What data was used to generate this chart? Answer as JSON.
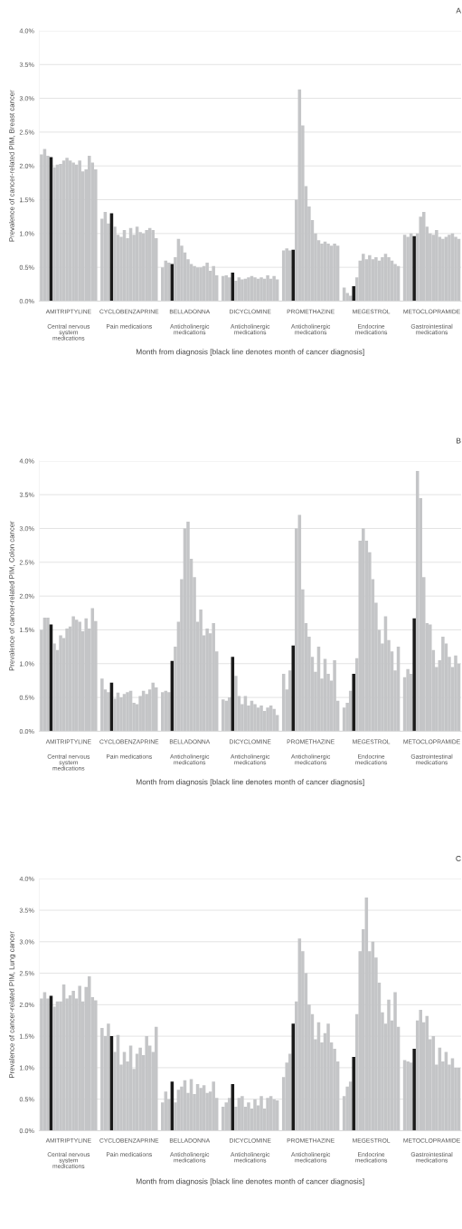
{
  "chart_data": [
    {
      "type": "bar",
      "title": "A",
      "ylabel": "Prevalence of cancer-related PIM, Breast cancer",
      "xlabel": "Month from diagnosis [black line denotes month of cancer diagnosis]",
      "categories": [
        null,
        null,
        null,
        null,
        null,
        null,
        null,
        null,
        null,
        null,
        null,
        null,
        null,
        null,
        null,
        null,
        null,
        null,
        null,
        null,
        null,
        null,
        null,
        null,
        null,
        null,
        null,
        null,
        null,
        null,
        null,
        null,
        null,
        null,
        null,
        null,
        null,
        null,
        null,
        null,
        null,
        null,
        null,
        null,
        null,
        null,
        null,
        null,
        null,
        null,
        null,
        null,
        null,
        null,
        null,
        null,
        null,
        null,
        null,
        null,
        null,
        null,
        null,
        null,
        null,
        null,
        null,
        null,
        null,
        null,
        null,
        null,
        null,
        null,
        null,
        null,
        null,
        null,
        null,
        null,
        null,
        null,
        null,
        null,
        null,
        null,
        null,
        null,
        null,
        null,
        null,
        null,
        null,
        null,
        null,
        null,
        null,
        null,
        null,
        null,
        null,
        null,
        null,
        null,
        null,
        null,
        null,
        null,
        null,
        null,
        null,
        null,
        null,
        null,
        null,
        null,
        null,
        null,
        null,
        null,
        null,
        null,
        null,
        null,
        null,
        null,
        null,
        null,
        null,
        null,
        null,
        null
      ],
      "values": [
        2.17,
        2.25,
        2.15,
        2.13,
        1.98,
        2.02,
        2.03,
        2.08,
        2.12,
        2.08,
        2.05,
        2.02,
        2.08,
        1.92,
        1.95,
        2.15,
        2.05,
        1.95,
        null,
        1.22,
        1.32,
        1.15,
        1.3,
        1.1,
        0.98,
        0.95,
        1.05,
        0.93,
        1.08,
        0.98,
        1.1,
        1.02,
        1.0,
        1.05,
        1.08,
        1.05,
        0.93,
        null,
        0.5,
        0.6,
        0.57,
        0.55,
        0.65,
        0.92,
        0.82,
        0.72,
        0.62,
        0.55,
        0.52,
        0.5,
        0.5,
        0.52,
        0.57,
        0.45,
        0.52,
        0.38,
        null,
        0.37,
        0.38,
        0.35,
        0.42,
        0.3,
        0.35,
        0.32,
        0.33,
        0.35,
        0.37,
        0.35,
        0.33,
        0.35,
        0.33,
        0.38,
        0.33,
        0.37,
        0.32,
        null,
        0.75,
        0.78,
        0.75,
        0.76,
        1.5,
        3.13,
        2.6,
        1.7,
        1.4,
        1.2,
        1.0,
        0.9,
        0.85,
        0.88,
        0.85,
        0.82,
        0.85,
        0.82,
        null,
        0.2,
        0.12,
        0.08,
        0.22,
        0.35,
        0.6,
        0.7,
        0.62,
        0.68,
        0.62,
        0.65,
        0.6,
        0.65,
        0.7,
        0.65,
        0.6,
        0.55,
        0.52,
        null,
        0.98,
        0.95,
        1.0,
        0.96,
        1.0,
        1.25,
        1.32,
        1.1,
        1.0,
        0.98,
        1.05,
        0.95,
        0.92,
        0.95,
        0.98,
        1.0,
        0.95,
        0.92
      ],
      "colors": [
        "#c4c5c7",
        "#c4c5c7",
        "#c4c5c7",
        "#1a1a1a",
        "#c4c5c7",
        "#c4c5c7",
        "#c4c5c7",
        "#c4c5c7",
        "#c4c5c7",
        "#c4c5c7",
        "#c4c5c7",
        "#c4c5c7",
        "#c4c5c7",
        "#c4c5c7",
        "#c4c5c7",
        "#c4c5c7",
        "#c4c5c7",
        "#c4c5c7",
        "#c4c5c7",
        "#c4c5c7",
        "#c4c5c7",
        "#c4c5c7",
        "#1a1a1a",
        "#c4c5c7",
        "#c4c5c7",
        "#c4c5c7",
        "#c4c5c7",
        "#c4c5c7",
        "#c4c5c7",
        "#c4c5c7",
        "#c4c5c7",
        "#c4c5c7",
        "#c4c5c7",
        "#c4c5c7",
        "#c4c5c7",
        "#c4c5c7",
        "#c4c5c7",
        "#c4c5c7",
        "#c4c5c7",
        "#c4c5c7",
        "#c4c5c7",
        "#1a1a1a",
        "#c4c5c7",
        "#c4c5c7",
        "#c4c5c7",
        "#c4c5c7",
        "#c4c5c7",
        "#c4c5c7",
        "#c4c5c7",
        "#c4c5c7",
        "#c4c5c7",
        "#c4c5c7",
        "#c4c5c7",
        "#c4c5c7",
        "#c4c5c7",
        "#c4c5c7",
        "#c4c5c7",
        "#c4c5c7",
        "#c4c5c7",
        "#c4c5c7",
        "#1a1a1a",
        "#c4c5c7",
        "#c4c5c7",
        "#c4c5c7",
        "#c4c5c7",
        "#c4c5c7",
        "#c4c5c7",
        "#c4c5c7",
        "#c4c5c7",
        "#c4c5c7",
        "#c4c5c7",
        "#c4c5c7",
        "#c4c5c7",
        "#c4c5c7",
        "#c4c5c7",
        "#c4c5c7",
        "#c4c5c7",
        "#c4c5c7",
        "#c4c5c7",
        "#1a1a1a",
        "#c4c5c7",
        "#c4c5c7",
        "#c4c5c7",
        "#c4c5c7",
        "#c4c5c7",
        "#c4c5c7",
        "#c4c5c7",
        "#c4c5c7",
        "#c4c5c7",
        "#c4c5c7",
        "#c4c5c7",
        "#c4c5c7",
        "#c4c5c7",
        "#c4c5c7",
        "#c4c5c7",
        "#c4c5c7",
        "#c4c5c7",
        "#c4c5c7",
        "#1a1a1a",
        "#c4c5c7",
        "#c4c5c7",
        "#c4c5c7",
        "#c4c5c7",
        "#c4c5c7",
        "#c4c5c7",
        "#c4c5c7",
        "#c4c5c7",
        "#c4c5c7",
        "#c4c5c7",
        "#c4c5c7",
        "#c4c5c7",
        "#c4c5c7",
        "#c4c5c7",
        "#c4c5c7",
        "#c4c5c7",
        "#c4c5c7",
        "#c4c5c7",
        "#1a1a1a",
        "#c4c5c7",
        "#c4c5c7",
        "#c4c5c7",
        "#c4c5c7",
        "#c4c5c7",
        "#c4c5c7",
        "#c4c5c7",
        "#c4c5c7",
        "#c4c5c7",
        "#c4c5c7",
        "#c4c5c7",
        "#c4c5c7",
        "#c4c5c7",
        "#c4c5c7"
      ],
      "ylim": [
        0,
        4.0
      ],
      "yticks": [
        {
          "value": 0,
          "label": "0.0%"
        },
        {
          "value": 0.5,
          "label": "0.5%"
        },
        {
          "value": 1.0,
          "label": "1.0%"
        },
        {
          "value": 1.5,
          "label": "1.5%"
        },
        {
          "value": 2.0,
          "label": "2.0%"
        },
        {
          "value": 2.5,
          "label": "2.5%"
        },
        {
          "value": 3.0,
          "label": "3.0%"
        },
        {
          "value": 3.5,
          "label": "3.5%"
        },
        {
          "value": 4.0,
          "label": "4.0%"
        }
      ],
      "grid": "y",
      "annotations": [
        "AMITRIPTYLINE",
        "Central nervous system medications",
        "CYCLOBENZAPRINE",
        "Pain medications",
        "BELLADONNA",
        "Anticholinergic medications",
        "DICYCLOMINE",
        "Anticholinergic medications",
        "PROMETHAZINE",
        "Anticholinergic medications",
        "MEGESTROL",
        "Endocrine medications",
        "METOCLOPRAMIDE",
        "Gastrointestinal medications"
      ]
    },
    {
      "type": "bar",
      "title": "B",
      "ylabel": "Prevalence of cancer-related PIM, Colon cancer",
      "xlabel": "Month from diagnosis [black line denotes month of cancer diagnosis]",
      "categories": [
        null,
        null,
        null,
        null,
        null,
        null,
        null,
        null,
        null,
        null,
        null,
        null,
        null,
        null,
        null,
        null,
        null,
        null,
        null,
        null,
        null,
        null,
        null,
        null,
        null,
        null,
        null,
        null,
        null,
        null,
        null,
        null,
        null,
        null,
        null,
        null,
        null,
        null,
        null,
        null,
        null,
        null,
        null,
        null,
        null,
        null,
        null,
        null,
        null,
        null,
        null,
        null,
        null,
        null,
        null,
        null,
        null,
        null,
        null,
        null,
        null,
        null,
        null,
        null,
        null,
        null,
        null,
        null,
        null,
        null,
        null,
        null,
        null,
        null,
        null,
        null,
        null,
        null,
        null,
        null,
        null,
        null,
        null,
        null,
        null,
        null,
        null,
        null,
        null,
        null,
        null,
        null,
        null,
        null,
        null,
        null,
        null,
        null,
        null,
        null,
        null,
        null,
        null,
        null,
        null,
        null,
        null,
        null,
        null,
        null,
        null,
        null,
        null,
        null,
        null,
        null,
        null,
        null,
        null,
        null,
        null,
        null,
        null,
        null,
        null,
        null,
        null,
        null,
        null,
        null,
        null,
        null
      ],
      "values": [
        1.5,
        1.68,
        1.68,
        1.58,
        1.3,
        1.2,
        1.42,
        1.38,
        1.52,
        1.55,
        1.7,
        1.65,
        1.62,
        1.48,
        1.67,
        1.52,
        1.82,
        1.63,
        null,
        0.78,
        0.62,
        0.58,
        0.72,
        0.48,
        0.57,
        0.5,
        0.55,
        0.58,
        0.6,
        0.42,
        0.4,
        0.52,
        0.6,
        0.55,
        0.62,
        0.72,
        0.65,
        null,
        0.58,
        0.6,
        0.58,
        1.04,
        1.25,
        1.62,
        2.25,
        3.0,
        3.1,
        2.55,
        2.28,
        1.62,
        1.8,
        1.42,
        1.52,
        1.45,
        1.6,
        1.18,
        null,
        0.47,
        0.45,
        0.5,
        1.1,
        0.82,
        0.52,
        0.4,
        0.52,
        0.38,
        0.45,
        0.4,
        0.35,
        0.38,
        0.3,
        0.35,
        0.38,
        0.33,
        0.24,
        null,
        0.85,
        0.62,
        0.9,
        1.27,
        3.0,
        3.2,
        2.1,
        1.6,
        1.4,
        1.1,
        0.88,
        1.25,
        0.78,
        1.07,
        0.85,
        0.75,
        1.05,
        0.45,
        null,
        0.35,
        0.42,
        0.6,
        0.85,
        1.08,
        2.82,
        3.0,
        2.82,
        2.65,
        2.25,
        1.9,
        1.5,
        1.3,
        1.7,
        1.35,
        1.18,
        0.9,
        1.25,
        null,
        0.8,
        0.92,
        0.85,
        1.67,
        3.85,
        3.45,
        2.28,
        1.6,
        1.58,
        1.2,
        0.95,
        1.05,
        1.4,
        1.3,
        1.1,
        0.95,
        1.12,
        1.0
      ],
      "colors": [
        "#c4c5c7",
        "#c4c5c7",
        "#c4c5c7",
        "#1a1a1a",
        "#c4c5c7",
        "#c4c5c7",
        "#c4c5c7",
        "#c4c5c7",
        "#c4c5c7",
        "#c4c5c7",
        "#c4c5c7",
        "#c4c5c7",
        "#c4c5c7",
        "#c4c5c7",
        "#c4c5c7",
        "#c4c5c7",
        "#c4c5c7",
        "#c4c5c7",
        "#c4c5c7",
        "#c4c5c7",
        "#c4c5c7",
        "#c4c5c7",
        "#1a1a1a",
        "#c4c5c7",
        "#c4c5c7",
        "#c4c5c7",
        "#c4c5c7",
        "#c4c5c7",
        "#c4c5c7",
        "#c4c5c7",
        "#c4c5c7",
        "#c4c5c7",
        "#c4c5c7",
        "#c4c5c7",
        "#c4c5c7",
        "#c4c5c7",
        "#c4c5c7",
        "#c4c5c7",
        "#c4c5c7",
        "#c4c5c7",
        "#c4c5c7",
        "#1a1a1a",
        "#c4c5c7",
        "#c4c5c7",
        "#c4c5c7",
        "#c4c5c7",
        "#c4c5c7",
        "#c4c5c7",
        "#c4c5c7",
        "#c4c5c7",
        "#c4c5c7",
        "#c4c5c7",
        "#c4c5c7",
        "#c4c5c7",
        "#c4c5c7",
        "#c4c5c7",
        "#c4c5c7",
        "#c4c5c7",
        "#c4c5c7",
        "#c4c5c7",
        "#1a1a1a",
        "#c4c5c7",
        "#c4c5c7",
        "#c4c5c7",
        "#c4c5c7",
        "#c4c5c7",
        "#c4c5c7",
        "#c4c5c7",
        "#c4c5c7",
        "#c4c5c7",
        "#c4c5c7",
        "#c4c5c7",
        "#c4c5c7",
        "#c4c5c7",
        "#c4c5c7",
        "#c4c5c7",
        "#c4c5c7",
        "#c4c5c7",
        "#c4c5c7",
        "#1a1a1a",
        "#c4c5c7",
        "#c4c5c7",
        "#c4c5c7",
        "#c4c5c7",
        "#c4c5c7",
        "#c4c5c7",
        "#c4c5c7",
        "#c4c5c7",
        "#c4c5c7",
        "#c4c5c7",
        "#c4c5c7",
        "#c4c5c7",
        "#c4c5c7",
        "#c4c5c7",
        "#c4c5c7",
        "#c4c5c7",
        "#c4c5c7",
        "#c4c5c7",
        "#1a1a1a",
        "#c4c5c7",
        "#c4c5c7",
        "#c4c5c7",
        "#c4c5c7",
        "#c4c5c7",
        "#c4c5c7",
        "#c4c5c7",
        "#c4c5c7",
        "#c4c5c7",
        "#c4c5c7",
        "#c4c5c7",
        "#c4c5c7",
        "#c4c5c7",
        "#c4c5c7",
        "#c4c5c7",
        "#c4c5c7",
        "#c4c5c7",
        "#c4c5c7",
        "#1a1a1a",
        "#c4c5c7",
        "#c4c5c7",
        "#c4c5c7",
        "#c4c5c7",
        "#c4c5c7",
        "#c4c5c7",
        "#c4c5c7",
        "#c4c5c7",
        "#c4c5c7",
        "#c4c5c7",
        "#c4c5c7",
        "#c4c5c7",
        "#c4c5c7",
        "#c4c5c7"
      ],
      "ylim": [
        0,
        4.0
      ],
      "yticks": [
        {
          "value": 0,
          "label": "0.0%"
        },
        {
          "value": 0.5,
          "label": "0.5%"
        },
        {
          "value": 1.0,
          "label": "1.0%"
        },
        {
          "value": 1.5,
          "label": "1.5%"
        },
        {
          "value": 2.0,
          "label": "2.0%"
        },
        {
          "value": 2.5,
          "label": "2.5%"
        },
        {
          "value": 3.0,
          "label": "3.0%"
        },
        {
          "value": 3.5,
          "label": "3.5%"
        },
        {
          "value": 4.0,
          "label": "4.0%"
        }
      ],
      "grid": "y",
      "annotations": [
        "AMITRIPTYLINE",
        "Central nervous system medications",
        "CYCLOBENZAPRINE",
        "Pain medications",
        "BELLADONNA",
        "Anticholinergic medications",
        "DICYCLOMINE",
        "Anticholinergic medications",
        "PROMETHAZINE",
        "Anticholinergic medications",
        "MEGESTROL",
        "Endocrine medications",
        "METOCLOPRAMIDE",
        "Gastrointestinal medications"
      ]
    },
    {
      "type": "bar",
      "title": "C",
      "ylabel": "Prevalence of cancer-related PIM, Lung cancer",
      "xlabel": "Month from diagnosis [black line denotes month of cancer diagnosis]",
      "categories": [
        null,
        null,
        null,
        null,
        null,
        null,
        null,
        null,
        null,
        null,
        null,
        null,
        null,
        null,
        null,
        null,
        null,
        null,
        null,
        null,
        null,
        null,
        null,
        null,
        null,
        null,
        null,
        null,
        null,
        null,
        null,
        null,
        null,
        null,
        null,
        null,
        null,
        null,
        null,
        null,
        null,
        null,
        null,
        null,
        null,
        null,
        null,
        null,
        null,
        null,
        null,
        null,
        null,
        null,
        null,
        null,
        null,
        null,
        null,
        null,
        null,
        null,
        null,
        null,
        null,
        null,
        null,
        null,
        null,
        null,
        null,
        null,
        null,
        null,
        null,
        null,
        null,
        null,
        null,
        null,
        null,
        null,
        null,
        null,
        null,
        null,
        null,
        null,
        null,
        null,
        null,
        null,
        null,
        null,
        null,
        null,
        null,
        null,
        null,
        null,
        null,
        null,
        null,
        null,
        null,
        null,
        null,
        null,
        null,
        null,
        null,
        null,
        null,
        null,
        null,
        null,
        null,
        null,
        null,
        null,
        null,
        null,
        null,
        null,
        null,
        null,
        null,
        null,
        null,
        null,
        null,
        null
      ],
      "values": [
        2.1,
        2.2,
        2.1,
        2.14,
        1.97,
        2.05,
        2.05,
        2.32,
        2.1,
        2.15,
        2.22,
        2.1,
        2.3,
        2.05,
        2.28,
        2.45,
        2.12,
        2.07,
        null,
        1.63,
        1.5,
        1.7,
        1.5,
        1.25,
        1.52,
        1.05,
        1.25,
        1.1,
        1.35,
        0.98,
        1.22,
        1.32,
        1.2,
        1.5,
        1.35,
        1.25,
        1.65,
        null,
        0.45,
        0.62,
        0.5,
        0.78,
        0.45,
        0.65,
        0.7,
        0.8,
        0.6,
        0.82,
        0.58,
        0.74,
        0.68,
        0.72,
        0.6,
        0.62,
        0.78,
        0.52,
        null,
        0.38,
        0.45,
        0.52,
        0.74,
        0.38,
        0.52,
        0.55,
        0.38,
        0.45,
        0.35,
        0.5,
        0.4,
        0.55,
        0.35,
        0.52,
        0.55,
        0.5,
        0.48,
        null,
        0.85,
        1.08,
        1.22,
        1.7,
        2.05,
        3.05,
        2.85,
        2.5,
        2.0,
        1.85,
        1.45,
        1.72,
        1.4,
        1.55,
        1.7,
        1.4,
        1.3,
        1.1,
        null,
        0.55,
        0.7,
        0.78,
        1.17,
        1.85,
        2.85,
        3.2,
        3.7,
        2.85,
        3.0,
        2.75,
        2.35,
        1.88,
        1.7,
        2.08,
        1.75,
        2.2,
        1.65,
        null,
        1.12,
        1.1,
        1.08,
        1.3,
        1.75,
        1.92,
        1.72,
        1.82,
        1.45,
        1.5,
        1.05,
        1.32,
        1.1,
        1.25,
        1.05,
        1.15,
        1.0,
        1.0
      ],
      "colors": [
        "#c4c5c7",
        "#c4c5c7",
        "#c4c5c7",
        "#1a1a1a",
        "#c4c5c7",
        "#c4c5c7",
        "#c4c5c7",
        "#c4c5c7",
        "#c4c5c7",
        "#c4c5c7",
        "#c4c5c7",
        "#c4c5c7",
        "#c4c5c7",
        "#c4c5c7",
        "#c4c5c7",
        "#c4c5c7",
        "#c4c5c7",
        "#c4c5c7",
        "#c4c5c7",
        "#c4c5c7",
        "#c4c5c7",
        "#c4c5c7",
        "#1a1a1a",
        "#c4c5c7",
        "#c4c5c7",
        "#c4c5c7",
        "#c4c5c7",
        "#c4c5c7",
        "#c4c5c7",
        "#c4c5c7",
        "#c4c5c7",
        "#c4c5c7",
        "#c4c5c7",
        "#c4c5c7",
        "#c4c5c7",
        "#c4c5c7",
        "#c4c5c7",
        "#c4c5c7",
        "#c4c5c7",
        "#c4c5c7",
        "#c4c5c7",
        "#1a1a1a",
        "#c4c5c7",
        "#c4c5c7",
        "#c4c5c7",
        "#c4c5c7",
        "#c4c5c7",
        "#c4c5c7",
        "#c4c5c7",
        "#c4c5c7",
        "#c4c5c7",
        "#c4c5c7",
        "#c4c5c7",
        "#c4c5c7",
        "#c4c5c7",
        "#c4c5c7",
        "#c4c5c7",
        "#c4c5c7",
        "#c4c5c7",
        "#c4c5c7",
        "#1a1a1a",
        "#c4c5c7",
        "#c4c5c7",
        "#c4c5c7",
        "#c4c5c7",
        "#c4c5c7",
        "#c4c5c7",
        "#c4c5c7",
        "#c4c5c7",
        "#c4c5c7",
        "#c4c5c7",
        "#c4c5c7",
        "#c4c5c7",
        "#c4c5c7",
        "#c4c5c7",
        "#c4c5c7",
        "#c4c5c7",
        "#c4c5c7",
        "#c4c5c7",
        "#1a1a1a",
        "#c4c5c7",
        "#c4c5c7",
        "#c4c5c7",
        "#c4c5c7",
        "#c4c5c7",
        "#c4c5c7",
        "#c4c5c7",
        "#c4c5c7",
        "#c4c5c7",
        "#c4c5c7",
        "#c4c5c7",
        "#c4c5c7",
        "#c4c5c7",
        "#c4c5c7",
        "#c4c5c7",
        "#c4c5c7",
        "#c4c5c7",
        "#c4c5c7",
        "#1a1a1a",
        "#c4c5c7",
        "#c4c5c7",
        "#c4c5c7",
        "#c4c5c7",
        "#c4c5c7",
        "#c4c5c7",
        "#c4c5c7",
        "#c4c5c7",
        "#c4c5c7",
        "#c4c5c7",
        "#c4c5c7",
        "#c4c5c7",
        "#c4c5c7",
        "#c4c5c7",
        "#c4c5c7",
        "#c4c5c7",
        "#c4c5c7",
        "#c4c5c7",
        "#1a1a1a",
        "#c4c5c7",
        "#c4c5c7",
        "#c4c5c7",
        "#c4c5c7",
        "#c4c5c7",
        "#c4c5c7",
        "#c4c5c7",
        "#c4c5c7",
        "#c4c5c7",
        "#c4c5c7",
        "#c4c5c7",
        "#c4c5c7",
        "#c4c5c7",
        "#c4c5c7"
      ],
      "ylim": [
        0,
        4.0
      ],
      "yticks": [
        {
          "value": 0,
          "label": "0.0%"
        },
        {
          "value": 0.5,
          "label": "0.5%"
        },
        {
          "value": 1.0,
          "label": "1.0%"
        },
        {
          "value": 1.5,
          "label": "1.5%"
        },
        {
          "value": 2.0,
          "label": "2.0%"
        },
        {
          "value": 2.5,
          "label": "2.5%"
        },
        {
          "value": 3.0,
          "label": "3.0%"
        },
        {
          "value": 3.5,
          "label": "3.5%"
        },
        {
          "value": 4.0,
          "label": "4.0%"
        }
      ],
      "grid": "y",
      "annotations": [
        "AMITRIPTYLINE",
        "Central nervous system medications",
        "CYCLOBENZAPRINE",
        "Pain medications",
        "BELLADONNA",
        "Anticholinergic medications",
        "DICYCLOMINE",
        "Anticholinergic medications",
        "PROMETHAZINE",
        "Anticholinergic medications",
        "MEGESTROL",
        "Endocrine medications",
        "METOCLOPRAMIDE",
        "Gastrointestinal medications"
      ]
    }
  ]
}
